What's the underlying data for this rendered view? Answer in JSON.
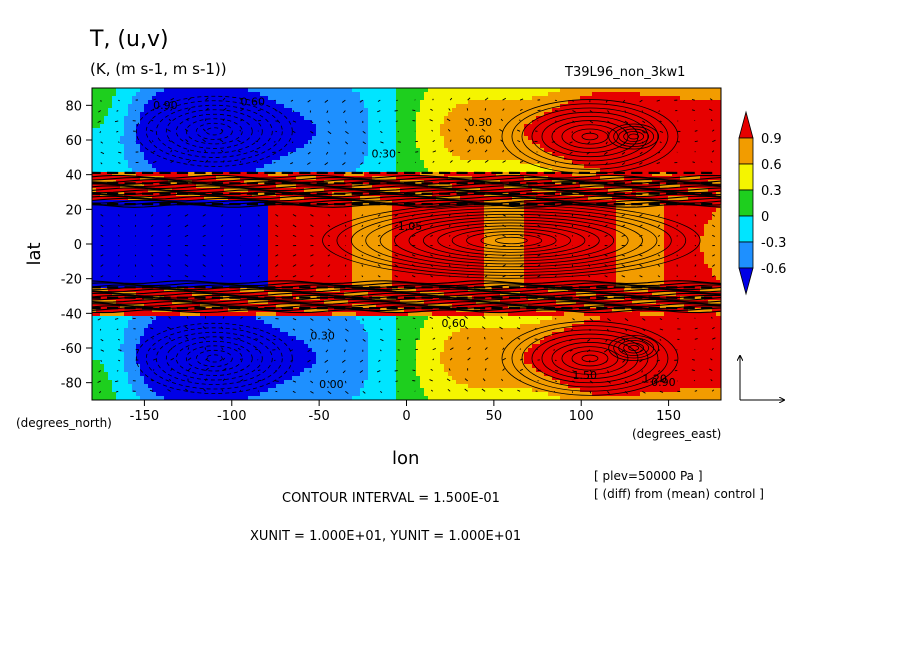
{
  "chart_data": {
    "type": "heatmap",
    "variable": "T, (u,v)",
    "units": "(K, (m s-1, m s-1))",
    "experiment": "T39L96_non_3kw1",
    "xlabel": "lon",
    "ylabel": "lat",
    "x_units_label": "(degrees_east)",
    "y_units_label": "(degrees_north)",
    "xlim": [
      -180,
      180
    ],
    "ylim": [
      -90,
      90
    ],
    "x_ticks": [
      -150,
      -100,
      -50,
      0,
      50,
      100,
      150
    ],
    "y_ticks": [
      80,
      60,
      40,
      20,
      0,
      -20,
      -40,
      -60,
      -80
    ],
    "x_tick_labels": [
      "-150",
      "-100",
      "-50",
      "0",
      "50",
      "100",
      "150"
    ],
    "y_tick_labels": [
      "80",
      "60",
      "40",
      "20",
      "0",
      "-20",
      "-40",
      "-60",
      "-80"
    ],
    "colorbar": {
      "levels": [
        0.9,
        0.6,
        0.3,
        0,
        -0.3,
        -0.6
      ],
      "labels": [
        "0.9",
        "0.6",
        "0.3",
        "0",
        "-0.3",
        "-0.6"
      ],
      "colors": [
        "#e60000",
        "#f29c00",
        "#f5f500",
        "#1ecf1e",
        "#00e5ff",
        "#1e90ff",
        "#0000e6"
      ]
    },
    "contour_labels": [
      "0.90",
      "0.60",
      "0.30",
      "0.60",
      "0.30",
      "1.50",
      "1.20",
      "0.90",
      "0.00",
      "0.30",
      "0.60",
      "1.05"
    ],
    "contour_interval_text": "CONTOUR INTERVAL = 1.500E-01",
    "unit_vector_text": "XUNIT = 1.000E+01, YUNIT = 1.000E+01",
    "level_text": "[ plev=50000 Pa ]",
    "diff_text": "[ (diff) from (mean) control ]"
  }
}
